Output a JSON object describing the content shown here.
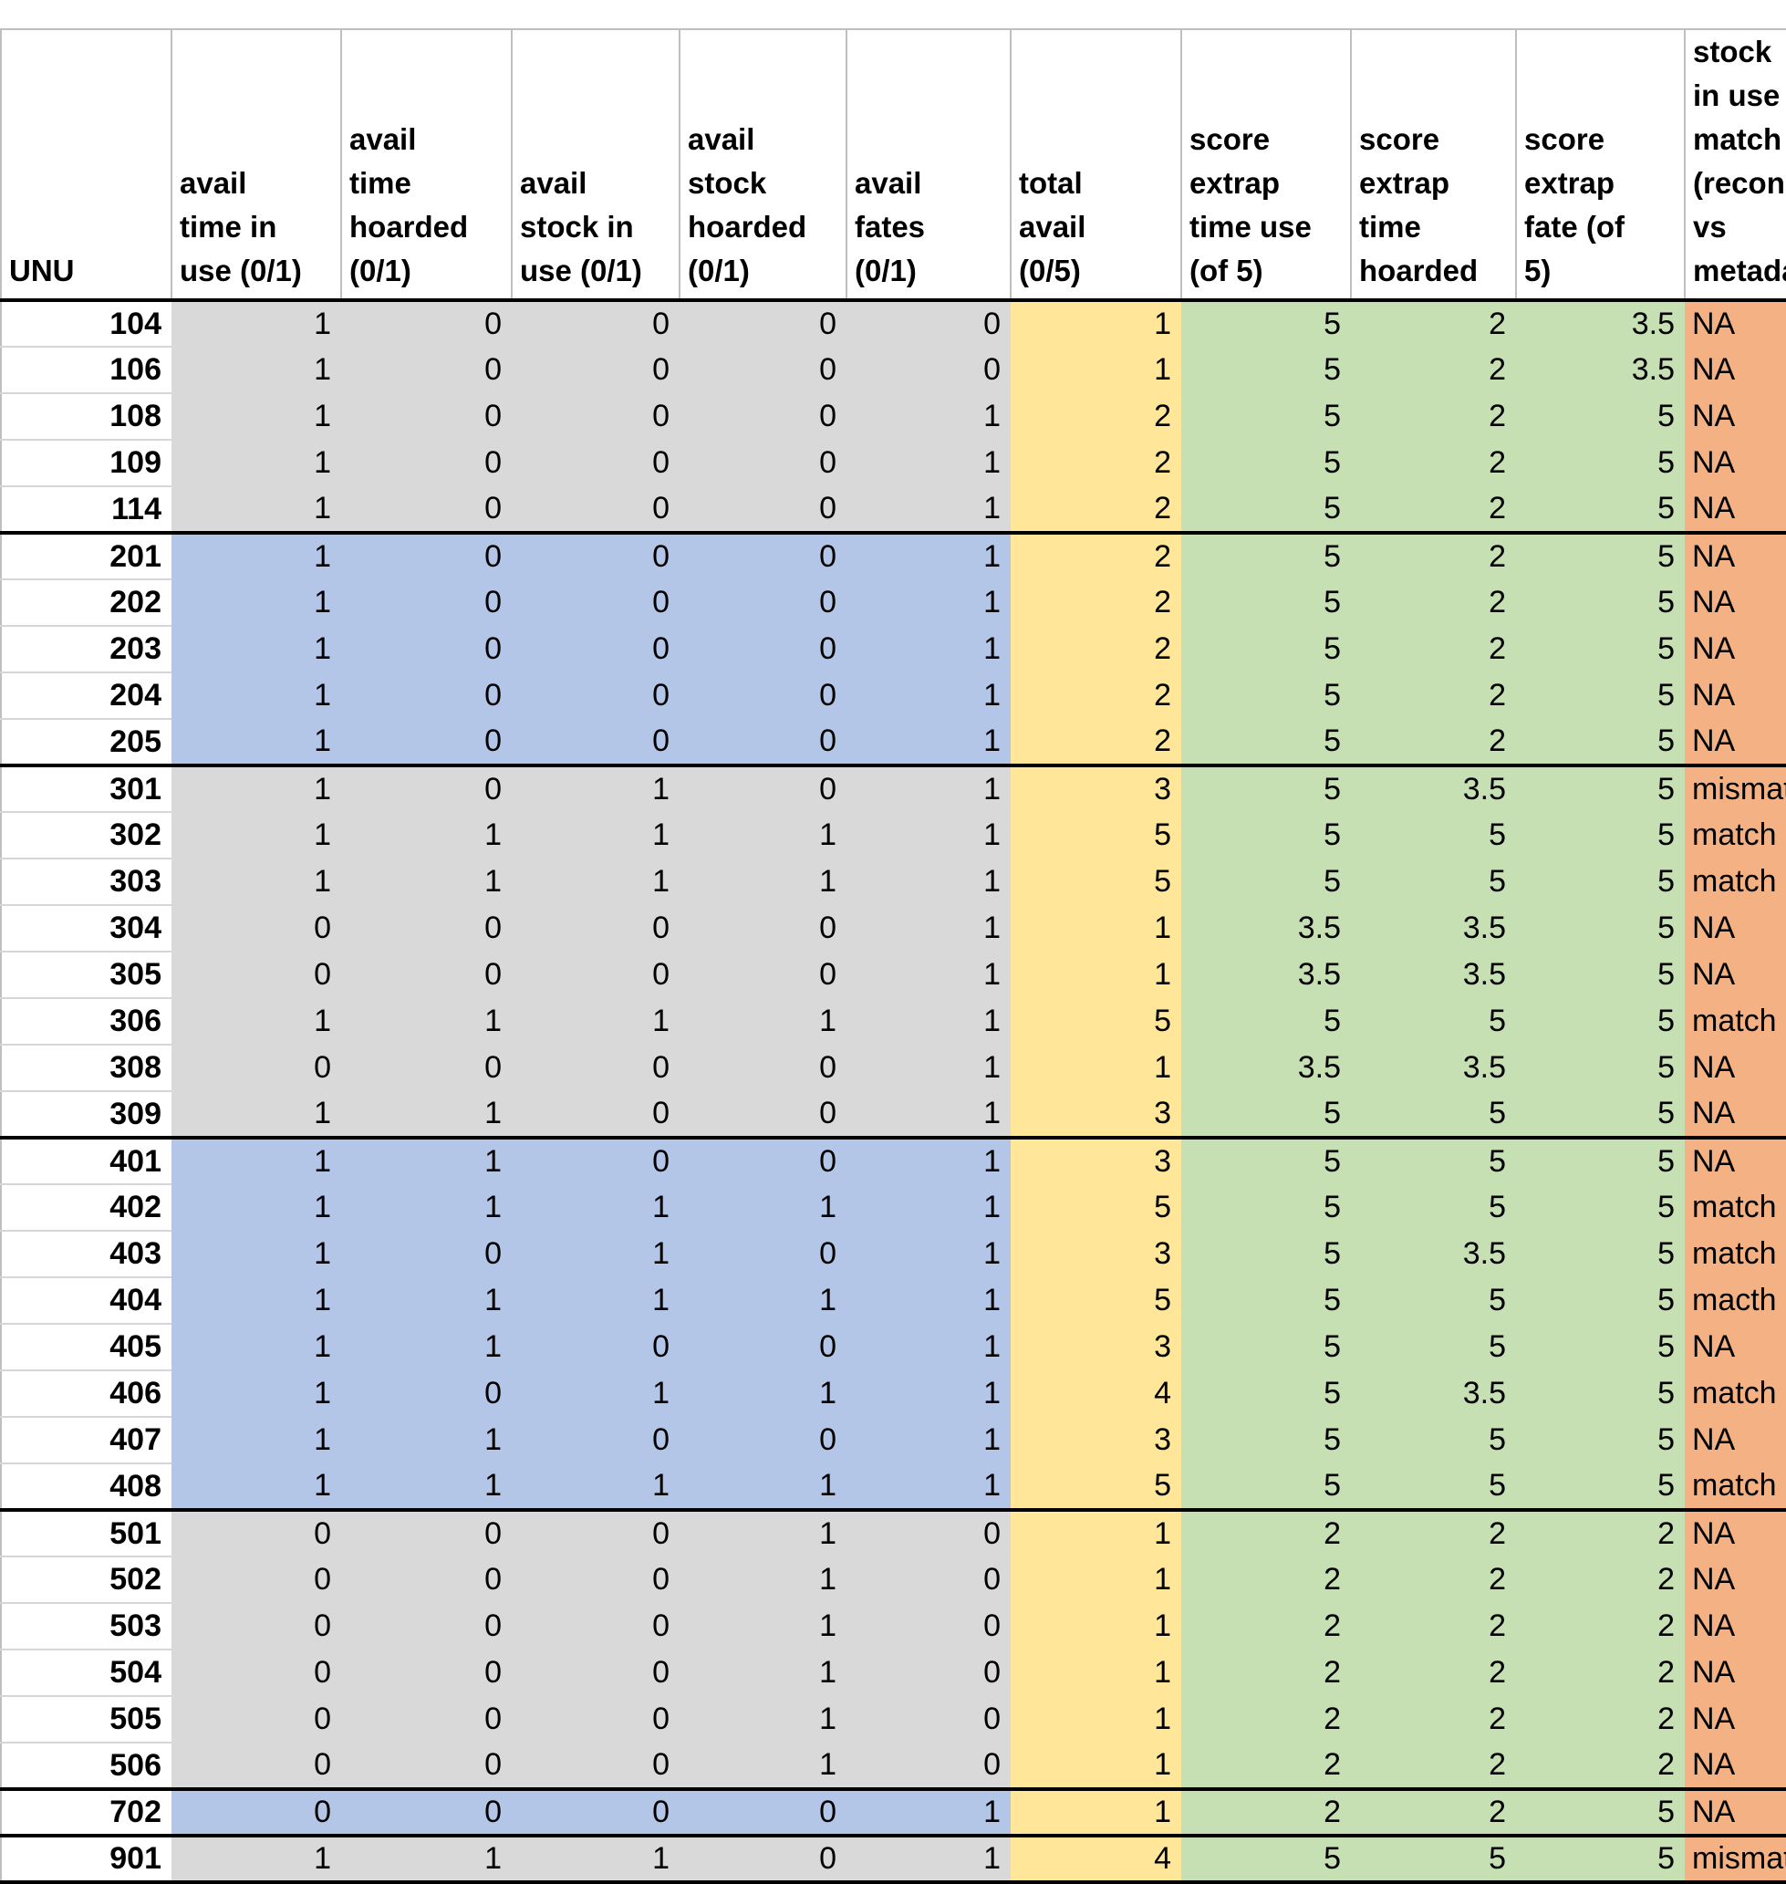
{
  "colors": {
    "band_gray": "#d9d9d9",
    "band_blue": "#b4c6e7",
    "total_fill": "#ffe699",
    "score_fill": "#c6e0b4",
    "match_fill": "#f4b183",
    "group_border": "#000000",
    "gridline": "#bfbfbf"
  },
  "chart_data": {
    "type": "table",
    "columns": [
      {
        "key": "unu",
        "label": "UNU"
      },
      {
        "key": "avail-time-in-use",
        "label": "avail\ntime in\nuse (0/1)"
      },
      {
        "key": "avail-time-hoarded",
        "label": "avail\ntime\nhoarded\n(0/1)"
      },
      {
        "key": "avail-stock-in-use",
        "label": "avail\nstock in\nuse (0/1)"
      },
      {
        "key": "avail-stock-hoarded",
        "label": "avail\nstock\nhoarded\n(0/1)"
      },
      {
        "key": "avail-fates",
        "label": "avail\nfates\n(0/1)"
      },
      {
        "key": "total-avail",
        "label": "total\navail\n(0/5)"
      },
      {
        "key": "score-extrap-time-use",
        "label": "score\nextrap\ntime use\n(of 5)"
      },
      {
        "key": "score-extrap-time-hoarded",
        "label": "score\nextrap\ntime\nhoarded"
      },
      {
        "key": "score-extrap-fate",
        "label": "score\nextrap\nfate (of\n5)"
      },
      {
        "key": "stock-in-use-match",
        "label": "stock in use\nmatch\n(reconstr. vs\nmetadata)"
      }
    ],
    "rows": [
      {
        "unu": "104",
        "band": "gray",
        "group_start": true,
        "avail": [
          1,
          0,
          0,
          0,
          0
        ],
        "total": 1,
        "scores": [
          5,
          2,
          3.5
        ],
        "match": "NA"
      },
      {
        "unu": "106",
        "band": "gray",
        "group_start": false,
        "avail": [
          1,
          0,
          0,
          0,
          0
        ],
        "total": 1,
        "scores": [
          5,
          2,
          3.5
        ],
        "match": "NA"
      },
      {
        "unu": "108",
        "band": "gray",
        "group_start": false,
        "avail": [
          1,
          0,
          0,
          0,
          1
        ],
        "total": 2,
        "scores": [
          5,
          2,
          5
        ],
        "match": "NA"
      },
      {
        "unu": "109",
        "band": "gray",
        "group_start": false,
        "avail": [
          1,
          0,
          0,
          0,
          1
        ],
        "total": 2,
        "scores": [
          5,
          2,
          5
        ],
        "match": "NA"
      },
      {
        "unu": "114",
        "band": "gray",
        "group_start": false,
        "avail": [
          1,
          0,
          0,
          0,
          1
        ],
        "total": 2,
        "scores": [
          5,
          2,
          5
        ],
        "match": "NA"
      },
      {
        "unu": "201",
        "band": "blue",
        "group_start": true,
        "avail": [
          1,
          0,
          0,
          0,
          1
        ],
        "total": 2,
        "scores": [
          5,
          2,
          5
        ],
        "match": "NA"
      },
      {
        "unu": "202",
        "band": "blue",
        "group_start": false,
        "avail": [
          1,
          0,
          0,
          0,
          1
        ],
        "total": 2,
        "scores": [
          5,
          2,
          5
        ],
        "match": "NA"
      },
      {
        "unu": "203",
        "band": "blue",
        "group_start": false,
        "avail": [
          1,
          0,
          0,
          0,
          1
        ],
        "total": 2,
        "scores": [
          5,
          2,
          5
        ],
        "match": "NA"
      },
      {
        "unu": "204",
        "band": "blue",
        "group_start": false,
        "avail": [
          1,
          0,
          0,
          0,
          1
        ],
        "total": 2,
        "scores": [
          5,
          2,
          5
        ],
        "match": "NA"
      },
      {
        "unu": "205",
        "band": "blue",
        "group_start": false,
        "avail": [
          1,
          0,
          0,
          0,
          1
        ],
        "total": 2,
        "scores": [
          5,
          2,
          5
        ],
        "match": "NA"
      },
      {
        "unu": "301",
        "band": "gray",
        "group_start": true,
        "avail": [
          1,
          0,
          1,
          0,
          1
        ],
        "total": 3,
        "scores": [
          5,
          3.5,
          5
        ],
        "match": "mismatch"
      },
      {
        "unu": "302",
        "band": "gray",
        "group_start": false,
        "avail": [
          1,
          1,
          1,
          1,
          1
        ],
        "total": 5,
        "scores": [
          5,
          5,
          5
        ],
        "match": "match"
      },
      {
        "unu": "303",
        "band": "gray",
        "group_start": false,
        "avail": [
          1,
          1,
          1,
          1,
          1
        ],
        "total": 5,
        "scores": [
          5,
          5,
          5
        ],
        "match": "match"
      },
      {
        "unu": "304",
        "band": "gray",
        "group_start": false,
        "avail": [
          0,
          0,
          0,
          0,
          1
        ],
        "total": 1,
        "scores": [
          3.5,
          3.5,
          5
        ],
        "match": "NA"
      },
      {
        "unu": "305",
        "band": "gray",
        "group_start": false,
        "avail": [
          0,
          0,
          0,
          0,
          1
        ],
        "total": 1,
        "scores": [
          3.5,
          3.5,
          5
        ],
        "match": "NA"
      },
      {
        "unu": "306",
        "band": "gray",
        "group_start": false,
        "avail": [
          1,
          1,
          1,
          1,
          1
        ],
        "total": 5,
        "scores": [
          5,
          5,
          5
        ],
        "match": "match"
      },
      {
        "unu": "308",
        "band": "gray",
        "group_start": false,
        "avail": [
          0,
          0,
          0,
          0,
          1
        ],
        "total": 1,
        "scores": [
          3.5,
          3.5,
          5
        ],
        "match": "NA"
      },
      {
        "unu": "309",
        "band": "gray",
        "group_start": false,
        "avail": [
          1,
          1,
          0,
          0,
          1
        ],
        "total": 3,
        "scores": [
          5,
          5,
          5
        ],
        "match": "NA"
      },
      {
        "unu": "401",
        "band": "blue",
        "group_start": true,
        "avail": [
          1,
          1,
          0,
          0,
          1
        ],
        "total": 3,
        "scores": [
          5,
          5,
          5
        ],
        "match": "NA"
      },
      {
        "unu": "402",
        "band": "blue",
        "group_start": false,
        "avail": [
          1,
          1,
          1,
          1,
          1
        ],
        "total": 5,
        "scores": [
          5,
          5,
          5
        ],
        "match": "match"
      },
      {
        "unu": "403",
        "band": "blue",
        "group_start": false,
        "avail": [
          1,
          0,
          1,
          0,
          1
        ],
        "total": 3,
        "scores": [
          5,
          3.5,
          5
        ],
        "match": "match"
      },
      {
        "unu": "404",
        "band": "blue",
        "group_start": false,
        "avail": [
          1,
          1,
          1,
          1,
          1
        ],
        "total": 5,
        "scores": [
          5,
          5,
          5
        ],
        "match": "macth"
      },
      {
        "unu": "405",
        "band": "blue",
        "group_start": false,
        "avail": [
          1,
          1,
          0,
          0,
          1
        ],
        "total": 3,
        "scores": [
          5,
          5,
          5
        ],
        "match": "NA"
      },
      {
        "unu": "406",
        "band": "blue",
        "group_start": false,
        "avail": [
          1,
          0,
          1,
          1,
          1
        ],
        "total": 4,
        "scores": [
          5,
          3.5,
          5
        ],
        "match": "match"
      },
      {
        "unu": "407",
        "band": "blue",
        "group_start": false,
        "avail": [
          1,
          1,
          0,
          0,
          1
        ],
        "total": 3,
        "scores": [
          5,
          5,
          5
        ],
        "match": "NA"
      },
      {
        "unu": "408",
        "band": "blue",
        "group_start": false,
        "avail": [
          1,
          1,
          1,
          1,
          1
        ],
        "total": 5,
        "scores": [
          5,
          5,
          5
        ],
        "match": "match"
      },
      {
        "unu": "501",
        "band": "gray",
        "group_start": true,
        "avail": [
          0,
          0,
          0,
          1,
          0
        ],
        "total": 1,
        "scores": [
          2,
          2,
          2
        ],
        "match": "NA"
      },
      {
        "unu": "502",
        "band": "gray",
        "group_start": false,
        "avail": [
          0,
          0,
          0,
          1,
          0
        ],
        "total": 1,
        "scores": [
          2,
          2,
          2
        ],
        "match": "NA"
      },
      {
        "unu": "503",
        "band": "gray",
        "group_start": false,
        "avail": [
          0,
          0,
          0,
          1,
          0
        ],
        "total": 1,
        "scores": [
          2,
          2,
          2
        ],
        "match": "NA"
      },
      {
        "unu": "504",
        "band": "gray",
        "group_start": false,
        "avail": [
          0,
          0,
          0,
          1,
          0
        ],
        "total": 1,
        "scores": [
          2,
          2,
          2
        ],
        "match": "NA"
      },
      {
        "unu": "505",
        "band": "gray",
        "group_start": false,
        "avail": [
          0,
          0,
          0,
          1,
          0
        ],
        "total": 1,
        "scores": [
          2,
          2,
          2
        ],
        "match": "NA"
      },
      {
        "unu": "506",
        "band": "gray",
        "group_start": false,
        "avail": [
          0,
          0,
          0,
          1,
          0
        ],
        "total": 1,
        "scores": [
          2,
          2,
          2
        ],
        "match": "NA"
      },
      {
        "unu": "702",
        "band": "blue",
        "group_start": true,
        "avail": [
          0,
          0,
          0,
          0,
          1
        ],
        "total": 1,
        "scores": [
          2,
          2,
          5
        ],
        "match": "NA"
      },
      {
        "unu": "901",
        "band": "gray",
        "group_start": true,
        "avail": [
          1,
          1,
          1,
          0,
          1
        ],
        "total": 4,
        "scores": [
          5,
          5,
          5
        ],
        "match": "mismatch"
      }
    ]
  }
}
